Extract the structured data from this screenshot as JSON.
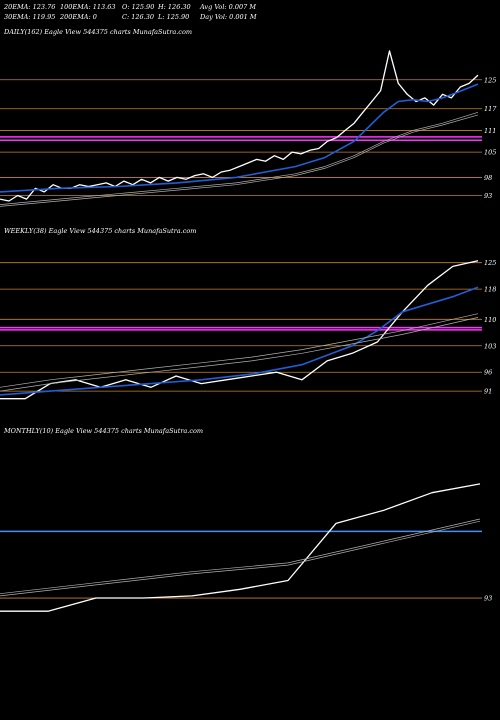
{
  "header": {
    "row1": [
      "20EMA: 123.76",
      "100EMA: 113.63",
      "O: 125.90",
      "H: 126.30",
      "Avg Vol: 0.007 M"
    ],
    "row2": [
      "30EMA: 119.95",
      "200EMA: 0",
      "C: 126.30",
      "L: 125.90",
      "Day Vol: 0.001 M"
    ]
  },
  "colors": {
    "background": "#000000",
    "price": "#ffffff",
    "ema_blue": "#1f5fd6",
    "ema_gray": "#b0b0b0",
    "grid": "#c8842a",
    "support_magenta": "#ff33ff",
    "support_blue": "#4a8cff"
  },
  "chart_data": [
    {
      "type": "line",
      "title": "DAILY(162) Eagle  View  544375 charts MunafaSutra.com",
      "yticks": [
        125,
        117,
        111,
        105,
        98,
        93
      ],
      "ylim": [
        89,
        136
      ],
      "series": [
        {
          "role": "price",
          "x": [
            0,
            3,
            6,
            9,
            12,
            15,
            18,
            21,
            24,
            27,
            30,
            33,
            36,
            39,
            42,
            45,
            48,
            51,
            54,
            57,
            60,
            63,
            66,
            69,
            72,
            75,
            78,
            81,
            84,
            87,
            90,
            93,
            96,
            99,
            102,
            105,
            108,
            111,
            114,
            117,
            120,
            123,
            126,
            129,
            132,
            135,
            138,
            141,
            144,
            147,
            150,
            153,
            156,
            159,
            162
          ],
          "y": [
            92,
            91.5,
            93,
            92,
            95,
            94,
            96,
            95,
            95,
            96,
            95.5,
            96,
            96.5,
            95.5,
            97,
            96,
            97.5,
            96.5,
            98,
            97,
            98,
            97.5,
            98.5,
            99,
            98,
            99.5,
            100,
            101,
            102,
            103,
            102.5,
            104,
            103,
            105,
            104.5,
            105.5,
            106,
            108,
            109,
            111,
            113,
            116,
            119,
            122,
            133,
            124,
            121,
            119,
            120,
            118,
            121,
            120,
            123,
            124,
            126.3
          ]
        },
        {
          "role": "ema-blue",
          "x": [
            0,
            20,
            40,
            60,
            80,
            100,
            110,
            120,
            125,
            130,
            135,
            140,
            145,
            150,
            155,
            162
          ],
          "y": [
            94,
            95,
            95.5,
            96.5,
            98,
            101,
            103.5,
            108,
            112,
            116,
            119,
            119.5,
            119,
            120,
            121.5,
            123.8
          ]
        },
        {
          "role": "ema-gray-1",
          "x": [
            0,
            20,
            40,
            60,
            80,
            100,
            110,
            120,
            130,
            140,
            150,
            162
          ],
          "y": [
            90.5,
            92,
            93.5,
            95,
            96.5,
            99,
            101,
            104,
            108,
            111,
            113,
            116
          ]
        },
        {
          "role": "ema-gray-2",
          "x": [
            0,
            20,
            40,
            60,
            80,
            100,
            110,
            120,
            130,
            140,
            150,
            162
          ],
          "y": [
            90,
            91.5,
            93,
            94.5,
            96,
            98.5,
            100.5,
            103.5,
            107.5,
            110.5,
            112.5,
            115.3
          ]
        }
      ],
      "hlines": [
        125,
        117,
        111,
        105,
        98,
        93
      ],
      "support": [
        {
          "value": 109.2,
          "color": "magenta"
        },
        {
          "value": 108.3,
          "color": "magenta"
        }
      ]
    },
    {
      "type": "line",
      "title": "WEEKLY(38) Eagle  View  544375 charts MunafaSutra.com",
      "yticks": [
        125,
        118,
        110,
        103,
        96,
        91
      ],
      "ylim": [
        86,
        131
      ],
      "series": [
        {
          "role": "price",
          "x": [
            0,
            2,
            4,
            6,
            8,
            10,
            12,
            14,
            16,
            18,
            20,
            22,
            24,
            26,
            28,
            30,
            32,
            34,
            36,
            38
          ],
          "y": [
            89,
            89,
            93,
            94,
            92,
            94,
            92,
            95,
            93,
            94,
            95,
            96,
            94,
            99,
            101,
            104,
            112,
            119,
            124,
            125.5
          ]
        },
        {
          "role": "ema-blue",
          "x": [
            0,
            4,
            8,
            12,
            16,
            20,
            24,
            28,
            30,
            32,
            34,
            36,
            38
          ],
          "y": [
            90,
            91,
            92,
            93,
            94,
            95.5,
            98,
            103,
            107,
            112,
            114,
            116,
            118.5
          ]
        },
        {
          "role": "ema-gray-1",
          "x": [
            0,
            4,
            8,
            12,
            16,
            20,
            24,
            28,
            32,
            36,
            38
          ],
          "y": [
            92,
            94,
            95.5,
            97,
            98.5,
            100,
            102,
            104.5,
            107,
            110,
            111.5
          ]
        },
        {
          "role": "ema-gray-2",
          "x": [
            0,
            4,
            8,
            12,
            16,
            20,
            24,
            28,
            32,
            36,
            38
          ],
          "y": [
            91,
            93,
            94.5,
            96,
            97.5,
            99,
            101,
            103.5,
            106,
            109,
            110.5
          ]
        }
      ],
      "hlines": [
        125,
        118,
        110,
        103,
        96,
        91
      ],
      "support": [
        {
          "value": 107.8,
          "color": "magenta"
        },
        {
          "value": 107.2,
          "color": "magenta"
        }
      ]
    },
    {
      "type": "line",
      "title": "MONTHLY(10) Eagle  View  544375 charts MunafaSutra.com",
      "yticks": [
        93
      ],
      "ylim": [
        88,
        129
      ],
      "series": [
        {
          "role": "price",
          "x": [
            0,
            1,
            2,
            3,
            4,
            5,
            6,
            7,
            8,
            9,
            10
          ],
          "y": [
            90,
            90,
            93,
            93,
            93.5,
            95,
            97,
            110,
            113,
            117,
            119
          ]
        },
        {
          "role": "ema-gray-1",
          "x": [
            0,
            2,
            4,
            6,
            8,
            10
          ],
          "y": [
            94,
            96.5,
            99,
            101,
            106,
            111
          ]
        },
        {
          "role": "ema-gray-2",
          "x": [
            0,
            2,
            4,
            6,
            8,
            10
          ],
          "y": [
            93.5,
            96,
            98.5,
            100.5,
            105.5,
            110.5
          ]
        }
      ],
      "hlines": [
        93
      ],
      "support": [
        {
          "value": 108.2,
          "color": "blue"
        }
      ]
    }
  ]
}
